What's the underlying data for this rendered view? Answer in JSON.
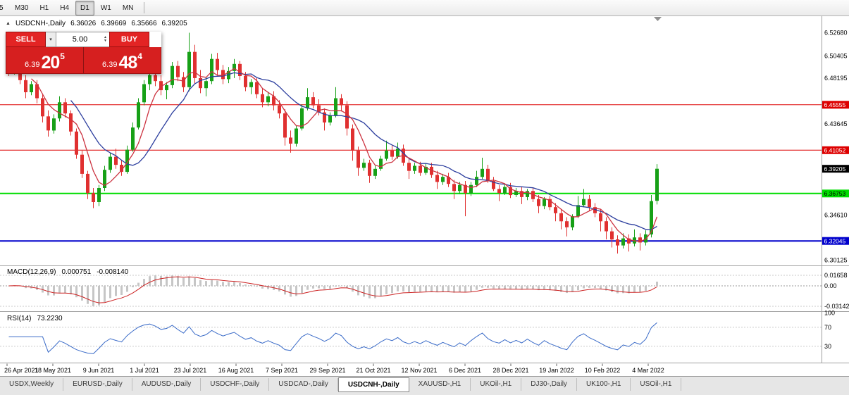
{
  "toolbar": {
    "timeframes": [
      "5",
      "M30",
      "H1",
      "H4",
      "D1",
      "W1",
      "MN"
    ],
    "active_timeframe": "D1"
  },
  "chart_header": {
    "symbol_period": "USDCNH-,Daily",
    "open": "6.36026",
    "high": "6.39669",
    "low": "6.35666",
    "close": "6.39205"
  },
  "trade_panel": {
    "sell_label": "SELL",
    "buy_label": "BUY",
    "volume": "5.00",
    "sell_price_prefix": "6.39",
    "sell_price_big": "20",
    "sell_price_sup": "5",
    "buy_price_prefix": "6.39",
    "buy_price_big": "48",
    "buy_price_sup": "4"
  },
  "indicators": {
    "macd": {
      "name": "MACD(12,26,9)",
      "main_value": "0.000751",
      "signal_value": "-0.008140",
      "axis_labels": [
        {
          "text": "0.01658",
          "value": 0.01658
        },
        {
          "text": "0.00",
          "value": 0
        },
        {
          "text": "-0.03142",
          "value": -0.03142
        }
      ]
    },
    "rsi": {
      "name": "RSI(14)",
      "value": "73.2230",
      "axis_labels": [
        {
          "text": "100",
          "value": 100
        },
        {
          "text": "70",
          "value": 70
        },
        {
          "text": "30",
          "value": 30
        }
      ],
      "level_lines": [
        70,
        30
      ]
    }
  },
  "chart_data": {
    "type": "candlestick",
    "symbol": "USDCNH-",
    "timeframe": "Daily",
    "ylim": [
      6.299,
      6.535
    ],
    "colors": {
      "up": "#17a017",
      "down": "#e03030",
      "ma_fast": "#cc3340",
      "ma_slow": "#2c3e9e",
      "macd_hist": "#c6c6c6",
      "macd_signal": "#cc2222",
      "rsi_line": "#3a6bc8",
      "grid_dotted": "#c8c8c8",
      "axis_line": "#a0a0a0"
    },
    "current_price": {
      "value": 6.39205,
      "label": "6.39205",
      "tag_color": "#000000",
      "text_color": "#ffffff"
    },
    "hlines": [
      {
        "value": 6.45555,
        "label": "6.45555",
        "color": "#dd0000",
        "width": 1,
        "text_color": "#ffffff"
      },
      {
        "value": 6.41052,
        "label": "6.41052",
        "color": "#dd0000",
        "width": 1,
        "text_color": "#ffffff"
      },
      {
        "value": 6.36753,
        "label": "6.36753",
        "color": "#00dd00",
        "width": 2,
        "text_color": "#000000"
      },
      {
        "value": 6.32045,
        "label": "6.32045",
        "color": "#0000cc",
        "width": 2,
        "text_color": "#ffffff"
      }
    ],
    "price_axis_plain": [
      {
        "text": "6.52680",
        "value": 6.5268
      },
      {
        "text": "6.50405",
        "value": 6.50405
      },
      {
        "text": "6.48195",
        "value": 6.48195
      },
      {
        "text": "6.43645",
        "value": 6.43645
      },
      {
        "text": "6.34610",
        "value": 6.3461
      },
      {
        "text": "6.30125",
        "value": 6.30125
      }
    ],
    "x_labels": [
      "26 Apr 2021",
      "18 May 2021",
      "9 Jun 2021",
      "1 Jul 2021",
      "23 Jul 2021",
      "16 Aug 2021",
      "7 Sep 2021",
      "29 Sep 2021",
      "21 Oct 2021",
      "12 Nov 2021",
      "6 Dec 2021",
      "28 Dec 2021",
      "19 Jan 2022",
      "10 Feb 2022",
      "4 Mar 2022"
    ],
    "candles": [
      [
        6.492,
        6.4985,
        6.484,
        6.4875
      ],
      [
        6.4875,
        6.4995,
        6.4855,
        6.495
      ],
      [
        6.495,
        6.497,
        6.476,
        6.48
      ],
      [
        6.48,
        6.485,
        6.462,
        6.468
      ],
      [
        6.468,
        6.479,
        6.465,
        6.476
      ],
      [
        6.476,
        6.48,
        6.457,
        6.462
      ],
      [
        6.462,
        6.466,
        6.438,
        6.444
      ],
      [
        6.444,
        6.45,
        6.424,
        6.43
      ],
      [
        6.43,
        6.446,
        6.427,
        6.442
      ],
      [
        6.442,
        6.464,
        6.439,
        6.458
      ],
      [
        6.458,
        6.462,
        6.443,
        6.447
      ],
      [
        6.447,
        6.45,
        6.425,
        6.429
      ],
      [
        6.429,
        6.432,
        6.402,
        6.406
      ],
      [
        6.406,
        6.41,
        6.383,
        6.387
      ],
      [
        6.387,
        6.39,
        6.362,
        6.368
      ],
      [
        6.368,
        6.373,
        6.353,
        6.359
      ],
      [
        6.359,
        6.376,
        6.355,
        6.373
      ],
      [
        6.373,
        6.395,
        6.37,
        6.391
      ],
      [
        6.391,
        6.408,
        6.388,
        6.404
      ],
      [
        6.404,
        6.412,
        6.392,
        6.396
      ],
      [
        6.396,
        6.401,
        6.385,
        6.389
      ],
      [
        6.389,
        6.415,
        6.387,
        6.411
      ],
      [
        6.411,
        6.438,
        6.409,
        6.433
      ],
      [
        6.433,
        6.462,
        6.431,
        6.458
      ],
      [
        6.458,
        6.48,
        6.455,
        6.476
      ],
      [
        6.476,
        6.489,
        6.47,
        6.485
      ],
      [
        6.485,
        6.492,
        6.474,
        6.479
      ],
      [
        6.479,
        6.485,
        6.465,
        6.47
      ],
      [
        6.47,
        6.478,
        6.461,
        6.475
      ],
      [
        6.475,
        6.498,
        6.472,
        6.494
      ],
      [
        6.494,
        6.499,
        6.479,
        6.483
      ],
      [
        6.483,
        6.488,
        6.468,
        6.473
      ],
      [
        6.473,
        6.527,
        6.469,
        6.508
      ],
      [
        6.508,
        6.515,
        6.476,
        6.482
      ],
      [
        6.482,
        6.49,
        6.467,
        6.472
      ],
      [
        6.472,
        6.483,
        6.464,
        6.479
      ],
      [
        6.479,
        6.506,
        6.476,
        6.501
      ],
      [
        6.501,
        6.507,
        6.485,
        6.49
      ],
      [
        6.49,
        6.495,
        6.476,
        6.481
      ],
      [
        6.481,
        6.493,
        6.477,
        6.489
      ],
      [
        6.489,
        6.501,
        6.482,
        6.496
      ],
      [
        6.496,
        6.499,
        6.48,
        6.484
      ],
      [
        6.484,
        6.488,
        6.469,
        6.473
      ],
      [
        6.473,
        6.481,
        6.466,
        6.478
      ],
      [
        6.478,
        6.482,
        6.462,
        6.466
      ],
      [
        6.466,
        6.472,
        6.453,
        6.458
      ],
      [
        6.458,
        6.468,
        6.454,
        6.464
      ],
      [
        6.464,
        6.469,
        6.45,
        6.455
      ],
      [
        6.455,
        6.46,
        6.442,
        6.447
      ],
      [
        6.447,
        6.451,
        6.415,
        6.423
      ],
      [
        6.423,
        6.43,
        6.408,
        6.417
      ],
      [
        6.417,
        6.435,
        6.414,
        6.432
      ],
      [
        6.432,
        6.456,
        6.43,
        6.452
      ],
      [
        6.452,
        6.472,
        6.45,
        6.463
      ],
      [
        6.463,
        6.468,
        6.452,
        6.455
      ],
      [
        6.455,
        6.461,
        6.445,
        6.448
      ],
      [
        6.448,
        6.452,
        6.43,
        6.438
      ],
      [
        6.438,
        6.448,
        6.435,
        6.445
      ],
      [
        6.445,
        6.473,
        6.443,
        6.462
      ],
      [
        6.462,
        6.466,
        6.449,
        6.455
      ],
      [
        6.455,
        6.459,
        6.425,
        6.432
      ],
      [
        6.432,
        6.436,
        6.4,
        6.41
      ],
      [
        6.41,
        6.414,
        6.385,
        6.393
      ],
      [
        6.393,
        6.402,
        6.39,
        6.398
      ],
      [
        6.398,
        6.401,
        6.378,
        6.385
      ],
      [
        6.385,
        6.395,
        6.382,
        6.392
      ],
      [
        6.392,
        6.405,
        6.39,
        6.402
      ],
      [
        6.402,
        6.42,
        6.4,
        6.41
      ],
      [
        6.41,
        6.415,
        6.401,
        6.404
      ],
      [
        6.404,
        6.418,
        6.402,
        6.412
      ],
      [
        6.412,
        6.416,
        6.395,
        6.398
      ],
      [
        6.398,
        6.402,
        6.382,
        6.39
      ],
      [
        6.39,
        6.398,
        6.387,
        6.395
      ],
      [
        6.395,
        6.399,
        6.385,
        6.388
      ],
      [
        6.388,
        6.397,
        6.386,
        6.394
      ],
      [
        6.394,
        6.398,
        6.383,
        6.386
      ],
      [
        6.386,
        6.39,
        6.372,
        6.379
      ],
      [
        6.379,
        6.387,
        6.376,
        6.384
      ],
      [
        6.384,
        6.388,
        6.374,
        6.377
      ],
      [
        6.377,
        6.381,
        6.362,
        6.37
      ],
      [
        6.37,
        6.379,
        6.367,
        6.376
      ],
      [
        6.376,
        6.38,
        6.345,
        6.368
      ],
      [
        6.368,
        6.379,
        6.365,
        6.376
      ],
      [
        6.376,
        6.39,
        6.374,
        6.384
      ],
      [
        6.384,
        6.403,
        6.382,
        6.392
      ],
      [
        6.392,
        6.396,
        6.378,
        6.38
      ],
      [
        6.38,
        6.384,
        6.37,
        6.372
      ],
      [
        6.372,
        6.376,
        6.36,
        6.368
      ],
      [
        6.368,
        6.377,
        6.366,
        6.374
      ],
      [
        6.374,
        6.378,
        6.363,
        6.366
      ],
      [
        6.366,
        6.373,
        6.364,
        6.37
      ],
      [
        6.37,
        6.374,
        6.357,
        6.364
      ],
      [
        6.364,
        6.372,
        6.361,
        6.37
      ],
      [
        6.37,
        6.373,
        6.359,
        6.362
      ],
      [
        6.362,
        6.366,
        6.348,
        6.355
      ],
      [
        6.355,
        6.364,
        6.352,
        6.362
      ],
      [
        6.362,
        6.365,
        6.351,
        6.354
      ],
      [
        6.354,
        6.358,
        6.34,
        6.348
      ],
      [
        6.348,
        6.352,
        6.332,
        6.34
      ],
      [
        6.34,
        6.344,
        6.325,
        6.334
      ],
      [
        6.334,
        6.347,
        6.331,
        6.345
      ],
      [
        6.345,
        6.365,
        6.343,
        6.356
      ],
      [
        6.356,
        6.372,
        6.354,
        6.362
      ],
      [
        6.362,
        6.366,
        6.35,
        6.354
      ],
      [
        6.354,
        6.358,
        6.344,
        6.348
      ],
      [
        6.348,
        6.352,
        6.33,
        6.34
      ],
      [
        6.34,
        6.344,
        6.322,
        6.33
      ],
      [
        6.33,
        6.334,
        6.314,
        6.322
      ],
      [
        6.322,
        6.326,
        6.308,
        6.316
      ],
      [
        6.316,
        6.328,
        6.313,
        6.323
      ],
      [
        6.323,
        6.327,
        6.31,
        6.318
      ],
      [
        6.318,
        6.332,
        6.315,
        6.324
      ],
      [
        6.324,
        6.328,
        6.311,
        6.319
      ],
      [
        6.319,
        6.331,
        6.316,
        6.327
      ],
      [
        6.327,
        6.366,
        6.324,
        6.36
      ],
      [
        6.36026,
        6.39669,
        6.35666,
        6.39205
      ]
    ]
  },
  "tabs": [
    {
      "label": "USDX,Weekly",
      "active": false
    },
    {
      "label": "EURUSD-,Daily",
      "active": false
    },
    {
      "label": "AUDUSD-,Daily",
      "active": false
    },
    {
      "label": "USDCHF-,Daily",
      "active": false
    },
    {
      "label": "USDCAD-,Daily",
      "active": false
    },
    {
      "label": "USDCNH-,Daily",
      "active": true
    },
    {
      "label": "XAUUSD-,H1",
      "active": false
    },
    {
      "label": "UKOil-,H1",
      "active": false
    },
    {
      "label": "DJ30-,Daily",
      "active": false
    },
    {
      "label": "UK100-,H1",
      "active": false
    },
    {
      "label": "USOil-,H1",
      "active": false
    }
  ]
}
